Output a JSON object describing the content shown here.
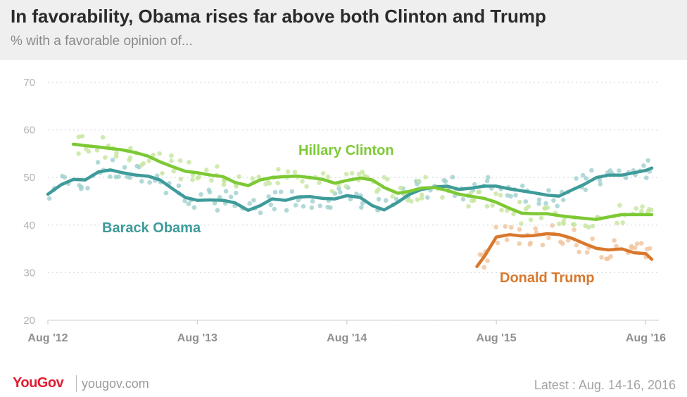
{
  "header": {
    "title": "In favorability, Obama rises far above both Clinton and Trump",
    "subtitle": "% with a favorable opinion of..."
  },
  "footer": {
    "logo": "YouGov",
    "site": "yougov.com",
    "latest": "Latest : Aug. 14-16, 2016"
  },
  "chart_data": {
    "type": "line",
    "title": "In favorability, Obama rises far above both Clinton and Trump",
    "subtitle": "% with a favorable opinion of...",
    "xlabel": "",
    "ylabel": "",
    "ylim": [
      20,
      70
    ],
    "yticks": [
      20,
      30,
      40,
      50,
      60,
      70
    ],
    "xlim": [
      2012.58,
      2016.62
    ],
    "xticks": [
      {
        "x": 2012.58,
        "label": "Aug '12"
      },
      {
        "x": 2013.58,
        "label": "Aug '13"
      },
      {
        "x": 2014.58,
        "label": "Aug '14"
      },
      {
        "x": 2015.58,
        "label": "Aug '15"
      },
      {
        "x": 2016.58,
        "label": "Aug '16"
      }
    ],
    "grid": true,
    "series": [
      {
        "name": "Barack Obama",
        "color": "#3e9b9a",
        "x": [
          2012.58,
          2012.67,
          2012.75,
          2012.83,
          2012.92,
          2013.0,
          2013.08,
          2013.17,
          2013.25,
          2013.33,
          2013.42,
          2013.5,
          2013.58,
          2013.67,
          2013.75,
          2013.83,
          2013.92,
          2014.0,
          2014.08,
          2014.17,
          2014.25,
          2014.33,
          2014.42,
          2014.5,
          2014.58,
          2014.67,
          2014.75,
          2014.83,
          2014.92,
          2015.0,
          2015.08,
          2015.17,
          2015.25,
          2015.33,
          2015.42,
          2015.5,
          2015.58,
          2015.67,
          2015.75,
          2015.83,
          2015.92,
          2016.0,
          2016.08,
          2016.17,
          2016.25,
          2016.33,
          2016.42,
          2016.5,
          2016.58,
          2016.62
        ],
        "y": [
          46.5,
          48.5,
          49.6,
          49.5,
          51.2,
          51.6,
          51.0,
          50.5,
          50.3,
          49.5,
          47.5,
          45.8,
          45.2,
          45.3,
          45.2,
          44.7,
          43.1,
          44.1,
          45.5,
          45.2,
          45.9,
          46.0,
          45.6,
          45.5,
          46.2,
          45.8,
          44.1,
          43.2,
          44.8,
          46.5,
          47.5,
          48.0,
          48.2,
          47.5,
          47.8,
          48.2,
          48.2,
          47.6,
          47.2,
          46.8,
          46.3,
          46.1,
          47.3,
          48.6,
          50.0,
          50.5,
          50.5,
          51.0,
          51.5,
          52.0
        ]
      },
      {
        "name": "Hillary Clinton",
        "color": "#7dc935",
        "x": [
          2012.75,
          2012.83,
          2012.92,
          2013.0,
          2013.08,
          2013.17,
          2013.25,
          2013.33,
          2013.42,
          2013.5,
          2013.58,
          2013.67,
          2013.75,
          2013.83,
          2013.92,
          2014.0,
          2014.08,
          2014.17,
          2014.25,
          2014.33,
          2014.42,
          2014.5,
          2014.58,
          2014.67,
          2014.75,
          2014.83,
          2014.92,
          2015.0,
          2015.08,
          2015.17,
          2015.25,
          2015.33,
          2015.42,
          2015.5,
          2015.58,
          2015.67,
          2015.75,
          2015.83,
          2015.92,
          2016.0,
          2016.08,
          2016.17,
          2016.25,
          2016.33,
          2016.42,
          2016.5,
          2016.58,
          2016.62
        ],
        "y": [
          57.0,
          56.7,
          56.4,
          56.1,
          55.8,
          55.2,
          54.5,
          53.3,
          52.2,
          51.3,
          51.0,
          50.5,
          50.2,
          49.0,
          48.3,
          49.5,
          50.0,
          50.2,
          50.3,
          50.0,
          49.6,
          48.8,
          49.4,
          49.9,
          49.5,
          47.9,
          46.7,
          47.1,
          47.8,
          47.9,
          47.3,
          46.5,
          46.0,
          45.6,
          44.8,
          43.5,
          42.5,
          42.4,
          42.4,
          42.0,
          41.7,
          41.4,
          41.2,
          41.7,
          42.2,
          42.2,
          42.2,
          42.2
        ]
      },
      {
        "name": "Donald Trump",
        "color": "#d9782d",
        "x": [
          2015.45,
          2015.5,
          2015.58,
          2015.67,
          2015.75,
          2015.83,
          2015.92,
          2016.0,
          2016.08,
          2016.17,
          2016.25,
          2016.33,
          2016.42,
          2016.5,
          2016.58,
          2016.62
        ],
        "y": [
          31.3,
          33.4,
          37.5,
          38.0,
          37.7,
          37.8,
          38.2,
          38.0,
          37.3,
          36.1,
          35.1,
          34.8,
          35.0,
          34.2,
          34.0,
          32.8
        ]
      }
    ],
    "annotations": [
      {
        "text": "Hillary Clinton",
        "color": "#7dc935"
      },
      {
        "text": "Barack Obama",
        "color": "#3e9b9a"
      },
      {
        "text": "Donald Trump",
        "color": "#d9782d"
      }
    ]
  }
}
